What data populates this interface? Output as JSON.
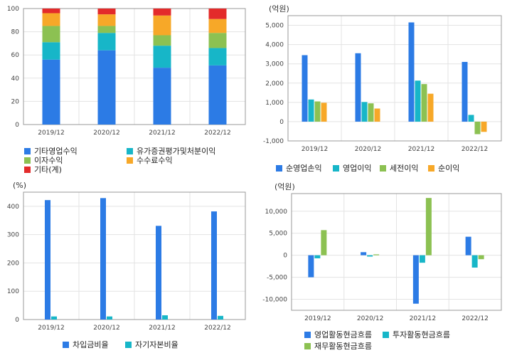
{
  "colors": {
    "blue": "#2c7be5",
    "teal": "#17b6c8",
    "green": "#8cc152",
    "orange": "#f7a828",
    "red": "#e32b2b",
    "grid": "#e3e3e3",
    "axis": "#999999"
  },
  "chart_data": [
    {
      "type": "bar",
      "stacked": true,
      "unit": "",
      "categories": [
        "2019/12",
        "2020/12",
        "2021/12",
        "2022/12"
      ],
      "ylim": [
        0,
        100
      ],
      "yticks": [
        "0",
        "20",
        "40",
        "60",
        "80",
        "100"
      ],
      "series": [
        {
          "name": "기타영업수익",
          "color": "#2c7be5",
          "values": [
            56,
            64,
            49,
            51
          ]
        },
        {
          "name": "유가증권평가및처분이익",
          "color": "#17b6c8",
          "values": [
            15,
            15,
            19,
            15
          ]
        },
        {
          "name": "이자수익",
          "color": "#8cc152",
          "values": [
            14,
            6,
            9,
            13
          ]
        },
        {
          "name": "수수료수익",
          "color": "#f7a828",
          "values": [
            11,
            10,
            17,
            12
          ]
        },
        {
          "name": "기타(계)",
          "color": "#e32b2b",
          "values": [
            4,
            5,
            6,
            9
          ]
        }
      ]
    },
    {
      "type": "bar",
      "unit": "(억원)",
      "categories": [
        "2019/12",
        "2020/12",
        "2021/12",
        "2022/12"
      ],
      "ylim": [
        -1000,
        5500
      ],
      "yticks": [
        "-1,000",
        "0",
        "1,000",
        "2,000",
        "3,000",
        "4,000",
        "5,000"
      ],
      "series": [
        {
          "name": "순영업손익",
          "color": "#2c7be5",
          "values": [
            3450,
            3550,
            5150,
            3100
          ]
        },
        {
          "name": "영업이익",
          "color": "#17b6c8",
          "values": [
            1150,
            1020,
            2130,
            350
          ]
        },
        {
          "name": "세전이익",
          "color": "#8cc152",
          "values": [
            1050,
            950,
            1950,
            -650
          ]
        },
        {
          "name": "순이익",
          "color": "#f7a828",
          "values": [
            980,
            680,
            1450,
            -530
          ]
        }
      ]
    },
    {
      "type": "bar",
      "unit": "(%)",
      "categories": [
        "2019/12",
        "2020/12",
        "2021/12",
        "2022/12"
      ],
      "ylim": [
        0,
        450
      ],
      "yticks": [
        "0",
        "100",
        "200",
        "300",
        "400"
      ],
      "series": [
        {
          "name": "차입금비율",
          "color": "#2c7be5",
          "values": [
            422,
            429,
            331,
            382
          ]
        },
        {
          "name": "자기자본비율",
          "color": "#17b6c8",
          "values": [
            11,
            11,
            15,
            13
          ]
        }
      ]
    },
    {
      "type": "bar",
      "unit": "(억원)",
      "categories": [
        "2019/12",
        "2020/12",
        "2021/12",
        "2022/12"
      ],
      "ylim": [
        -12500,
        14000
      ],
      "yticks": [
        "-10,000",
        "-5,000",
        "0",
        "5,000",
        "10,000"
      ],
      "series": [
        {
          "name": "영업활동현금흐름",
          "color": "#2c7be5",
          "values": [
            -5000,
            700,
            -11000,
            4200
          ]
        },
        {
          "name": "투자활동현금흐름",
          "color": "#17b6c8",
          "values": [
            -700,
            -300,
            -1700,
            -2800
          ]
        },
        {
          "name": "재무활동현금흐름",
          "color": "#8cc152",
          "values": [
            5700,
            200,
            13000,
            -900
          ]
        }
      ]
    }
  ]
}
